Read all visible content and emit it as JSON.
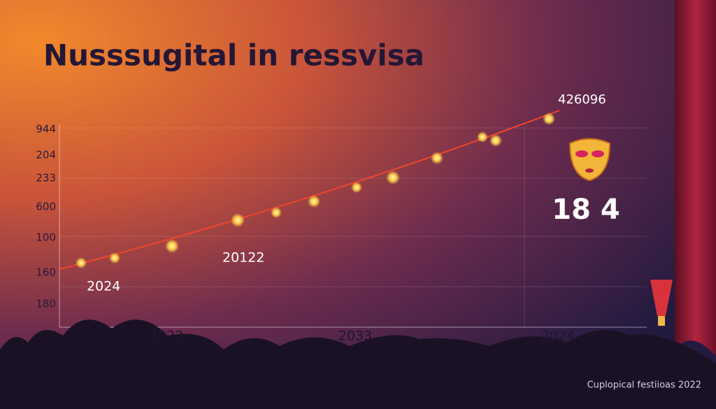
{
  "title": "Nusssugital in ressvisa",
  "y_labels": [
    "944",
    "204",
    "233",
    "600",
    "100",
    "160",
    "180"
  ],
  "x_labels": [
    "2022",
    "2033",
    "2024"
  ],
  "annotations": [
    "2024",
    "20122",
    "426096"
  ],
  "highlight": "18 4",
  "footer": "Cuplopical festiioas 2022"
}
